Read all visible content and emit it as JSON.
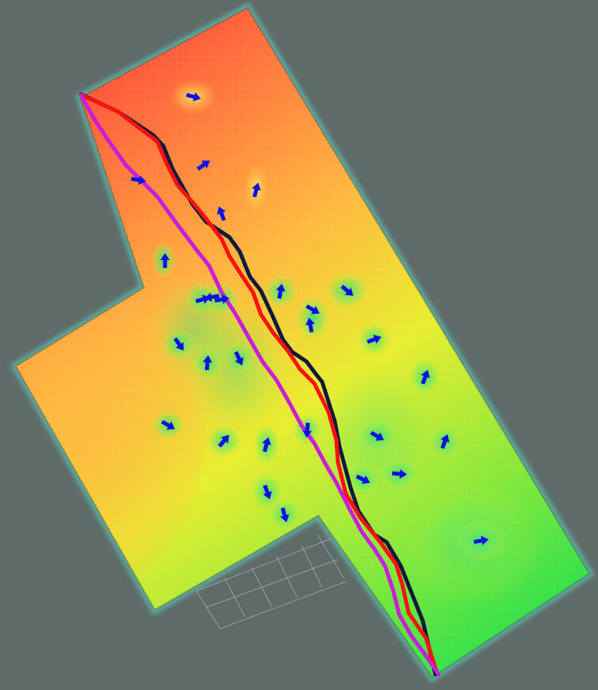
{
  "viewport": {
    "background_color": "#5f6b69",
    "floor_grid_color": "#c8c8c8"
  },
  "costmap": {
    "high_cost_color": "#ff5a3c",
    "mid_cost_color": "#ffd13a",
    "low_cost_color": "#2fe04a",
    "edge_glow_color": "#5fe0c8"
  },
  "paths": [
    {
      "id": "path-black",
      "color": "#101a3a"
    },
    {
      "id": "path-red",
      "color": "#ff1010"
    },
    {
      "id": "path-magenta",
      "color": "#c81ed8"
    }
  ],
  "obstacle_markers": {
    "color": "#1010e0",
    "icon": "arrow-icon",
    "count": 33
  }
}
